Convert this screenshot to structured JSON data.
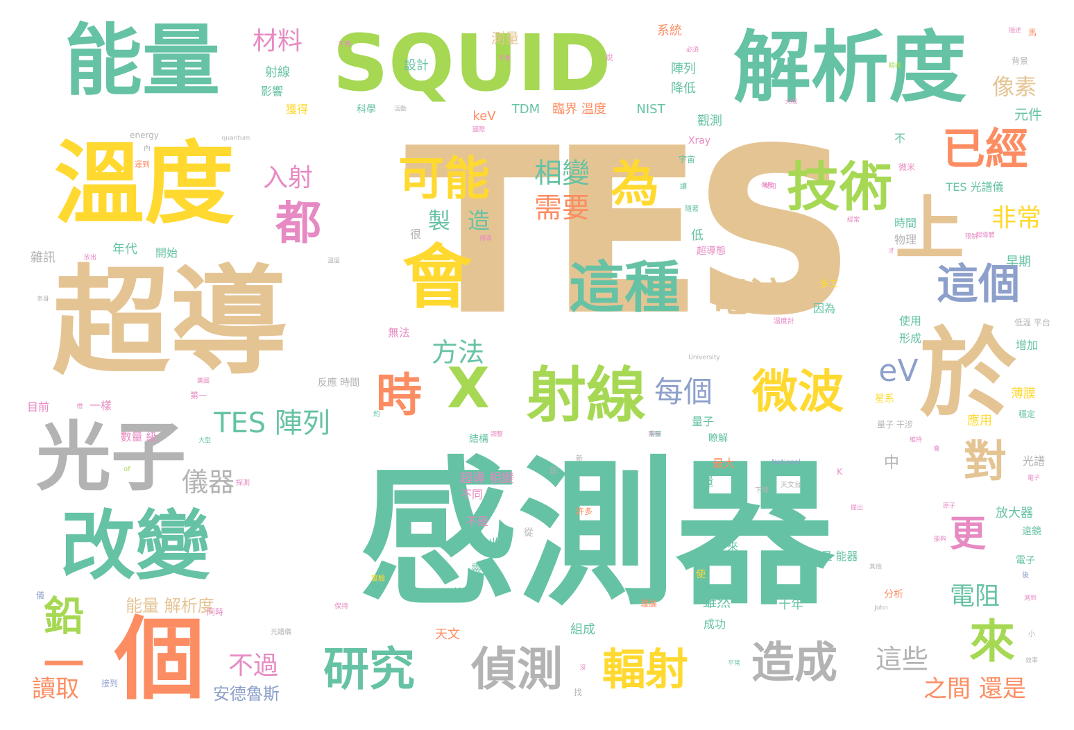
{
  "words": {
    "w1": "TES",
    "w2": "感測器",
    "w3": "超導",
    "w4": "能量",
    "w5": "溫度",
    "w6": "SQUID",
    "w7": "解析度",
    "w8": "光子",
    "w9": "改變",
    "w10": "個",
    "w11": "於",
    "w12": "上",
    "w13": "會",
    "w14": "這種",
    "w15": "射線",
    "w16": "技術",
    "w17": "X",
    "w18": "時",
    "w19": "可能",
    "w20": "為",
    "w21": "都",
    "w22": "已經",
    "w23": "這個",
    "w24": "微波",
    "w25": "電流",
    "w26": "研究",
    "w27": "偵測",
    "w28": "輻射",
    "w29": "造成",
    "w30": "對",
    "w31": "來",
    "w32": "鉛",
    "w33": "一",
    "w34": "更",
    "w35": "相變",
    "w36": "需要",
    "w37": "方法",
    "w38": "每個",
    "w39": "eV",
    "w40": "TES 陣列",
    "w41": "儀器",
    "w42": "入射",
    "w43": "材料",
    "w44": "非常",
    "w45": "像素",
    "w46": "這些",
    "w47": "之間",
    "w48": "還是",
    "w49": "不過",
    "w50": "讀取",
    "w51": "安德魯斯",
    "w52": "能量 解析度",
    "w53": "電阻",
    "w54": "製",
    "w55": "造",
    "w56": "設計",
    "w57": "測量",
    "w58": "系統",
    "w59": "陣列",
    "w60": "降低",
    "w61": "臨界 溫度",
    "w62": "TDM",
    "w63": "keV",
    "w64": "NIST",
    "w65": "觀測",
    "w66": "Xray",
    "w67": "TES 光譜儀",
    "w68": "元件",
    "w69": "早期",
    "w70": "時間",
    "w71": "物理",
    "w72": "使用",
    "w73": "形成",
    "w74": "增加",
    "w75": "低溫 平台",
    "w76": "薄膜",
    "w77": "應用",
    "w78": "穩定",
    "w79": "量子 干涉",
    "w80": "星系",
    "w81": "光譜",
    "w82": "放大器",
    "w83": "遠鏡",
    "w84": "電子",
    "w85": "分析",
    "w86": "十年",
    "w87": "中",
    "w88": "量 能器",
    "w89": "超導 相變",
    "w90": "不同",
    "w91": "不是",
    "w92": "吸收",
    "w93": "靈敏",
    "w94": "熱庫",
    "w95": "天文",
    "w96": "雖然",
    "w97": "成功",
    "w98": "組成",
    "w99": "量子",
    "w100": "瞭解",
    "w101": "最大",
    "w102": "量",
    "w103": "高",
    "w104": "一來",
    "w105": "使",
    "w106": "年代",
    "w107": "開始",
    "w108": "雜訊",
    "w109": "目前",
    "w110": "一樣",
    "w111": "數量 級",
    "w112": "射線",
    "w113": "影響",
    "w114": "獲得",
    "w115": "科學",
    "w116": "很",
    "w117": "低",
    "w118": "超導態",
    "w119": "多工",
    "w120": "因為",
    "w121": "不",
    "w122": "宇宙",
    "w123": "無法",
    "w124": "反應 時間",
    "w125": "結構",
    "w126": "第一",
    "w127": "同時",
    "w128": "接到",
    "w129": "光譜儀",
    "w130": "天文台",
    "w131": "下降",
    "w132": "理論",
    "w133": "實驗",
    "w134": "從",
    "w135": "年",
    "w136": "許多",
    "w137": "背景",
    "w138": "馬",
    "w139": "溫度計",
    "w140": "微米",
    "w141": "K",
    "w142": "National",
    "w143": "University",
    "w144": "energy",
    "w145": "quantum",
    "w146": "John",
    "w147": "of",
    "w148": "新",
    "w149": "找",
    "w150": "保持",
    "w151": "後",
    "w152": "小",
    "w153": "效率",
    "w154": "本身",
    "w155": "運到",
    "w156": "國際",
    "w157": "內",
    "w158": "放出",
    "w159": "電子",
    "w160": "大型",
    "w161": "探測",
    "w162": "帶",
    "w163": "約",
    "w164": "不勝",
    "w165": "不會",
    "w166": "說",
    "w167": "必須",
    "w168": "大概",
    "w169": "溫度",
    "w170": "讓",
    "w171": "隨著",
    "w172": "經常",
    "w173": "限制",
    "w174": "才",
    "w175": "會",
    "w176": "描述",
    "w177": "精確",
    "w178": "常用",
    "w179": "傳導",
    "w180": "重要",
    "w181": "調整",
    "w182": "維持",
    "w183": "平常",
    "w184": "沒",
    "w185": "容易",
    "w186": "其他",
    "w187": "原子",
    "w188": "超導體",
    "w189": "偏壓",
    "w190": "能夠",
    "w191": "提出",
    "w192": "測到",
    "w193": "活動",
    "w194": "儀",
    "w195": "美國"
  }
}
